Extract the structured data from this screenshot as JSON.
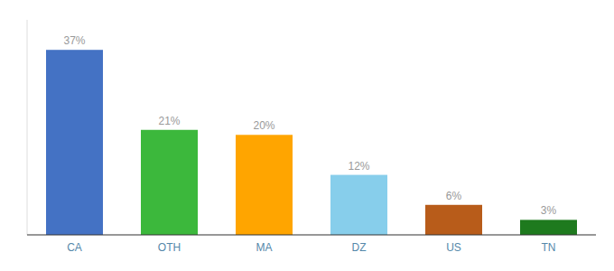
{
  "chart_data": {
    "type": "bar",
    "categories": [
      "CA",
      "OTH",
      "MA",
      "DZ",
      "US",
      "TN"
    ],
    "values": [
      37,
      21,
      20,
      12,
      6,
      3
    ],
    "value_labels": [
      "37%",
      "21%",
      "20%",
      "12%",
      "6%",
      "3%"
    ],
    "colors": [
      "#4472C4",
      "#3CB83C",
      "#FFA500",
      "#87CEEB",
      "#B85C1A",
      "#1E7A1E"
    ],
    "ylim": [
      0,
      43
    ],
    "data_labels": true,
    "tick_labels": "x",
    "grid": false
  }
}
